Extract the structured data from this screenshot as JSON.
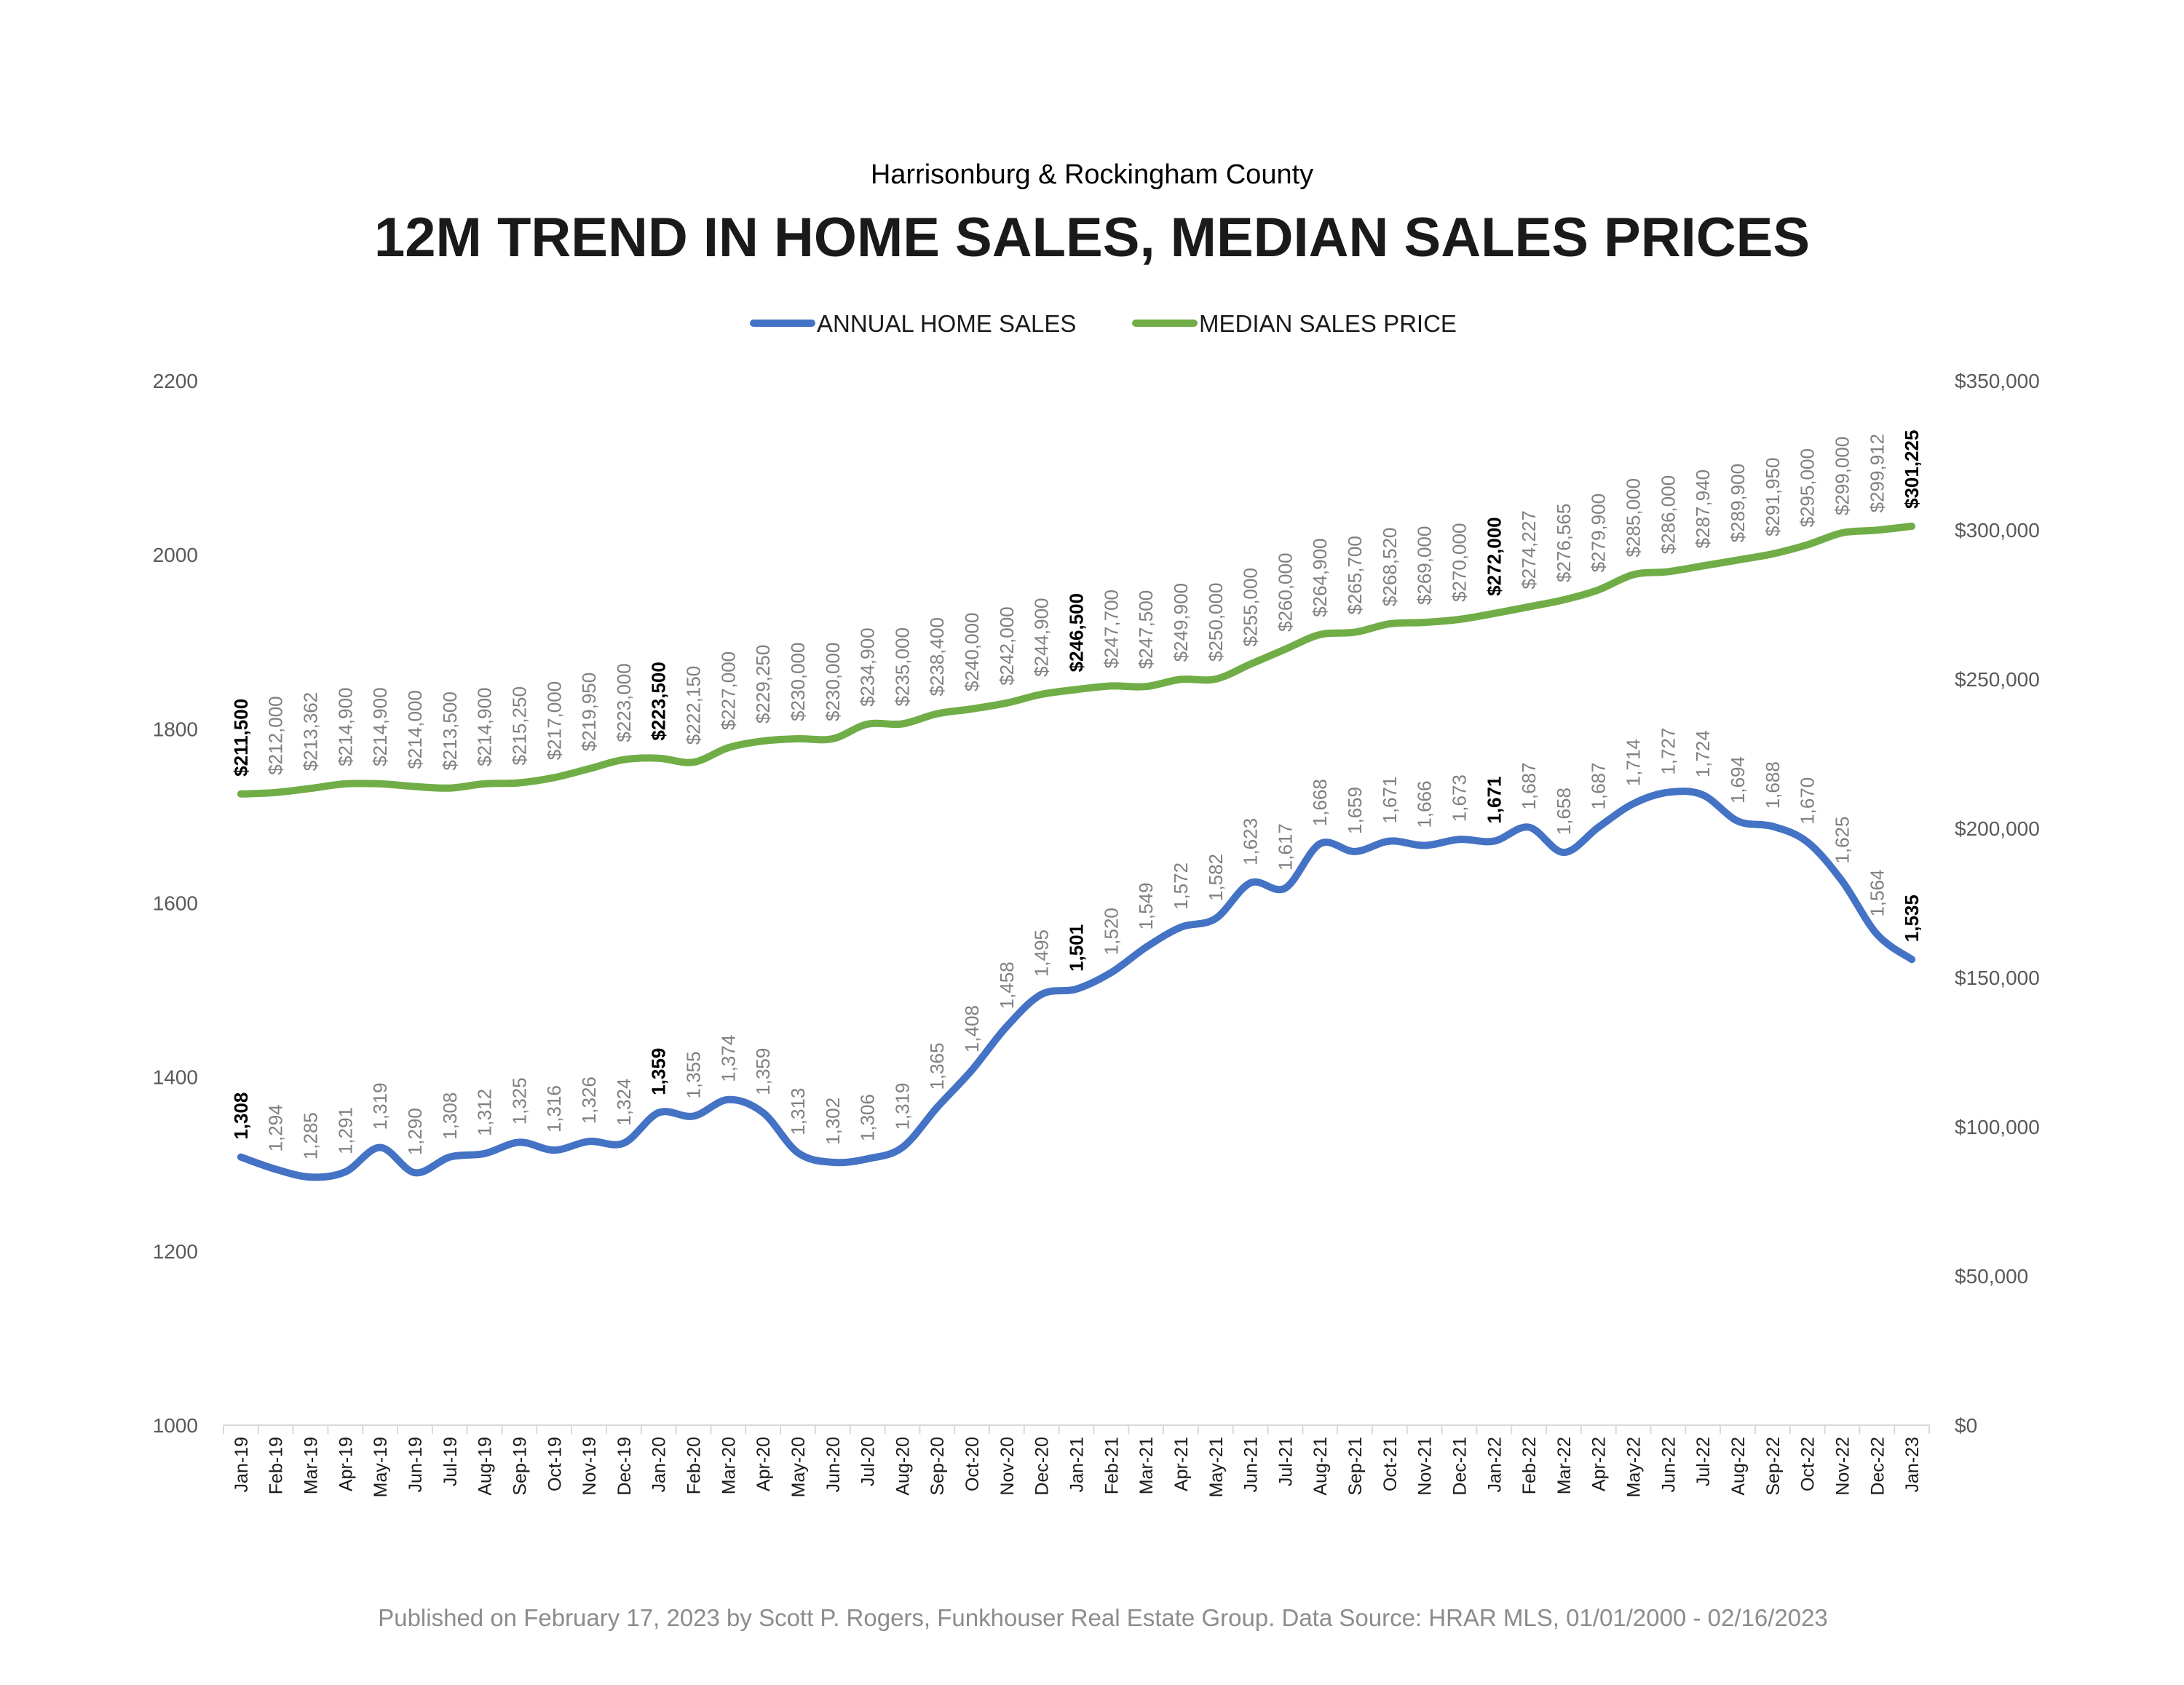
{
  "chart_data": {
    "type": "line",
    "subtitle": "Harrisonburg & Rockingham County",
    "title": "12M TREND IN HOME SALES, MEDIAN SALES PRICES",
    "footer": "Published on February 17, 2023 by Scott P. Rogers, Funkhouser Real Estate Group. Data Source: HRAR MLS, 01/01/2000 - 02/16/2023",
    "legend_position": "top-center",
    "grid": false,
    "categories": [
      "Jan-19",
      "Feb-19",
      "Mar-19",
      "Apr-19",
      "May-19",
      "Jun-19",
      "Jul-19",
      "Aug-19",
      "Sep-19",
      "Oct-19",
      "Nov-19",
      "Dec-19",
      "Jan-20",
      "Feb-20",
      "Mar-20",
      "Apr-20",
      "May-20",
      "Jun-20",
      "Jul-20",
      "Aug-20",
      "Sep-20",
      "Oct-20",
      "Nov-20",
      "Dec-20",
      "Jan-21",
      "Feb-21",
      "Mar-21",
      "Apr-21",
      "May-21",
      "Jun-21",
      "Jul-21",
      "Aug-21",
      "Sep-21",
      "Oct-21",
      "Nov-21",
      "Dec-21",
      "Jan-22",
      "Feb-22",
      "Mar-22",
      "Apr-22",
      "May-22",
      "Jun-22",
      "Jul-22",
      "Aug-22",
      "Sep-22",
      "Oct-22",
      "Nov-22",
      "Dec-22",
      "Jan-23"
    ],
    "y_left": {
      "min": 1000,
      "max": 2200,
      "ticks": [
        "1000",
        "1200",
        "1400",
        "1600",
        "1800",
        "2000",
        "2200"
      ]
    },
    "y_right": {
      "min": 0,
      "max": 350000,
      "ticks": [
        "$0",
        "$50,000",
        "$100,000",
        "$150,000",
        "$200,000",
        "$250,000",
        "$300,000",
        "$350,000"
      ]
    },
    "highlight_indices": [
      0,
      12,
      24,
      36,
      48
    ],
    "series": [
      {
        "name": "ANNUAL HOME SALES",
        "axis": "left",
        "color": "#4472C4",
        "values": [
          1308,
          1294,
          1285,
          1291,
          1319,
          1290,
          1308,
          1312,
          1325,
          1316,
          1326,
          1324,
          1359,
          1355,
          1374,
          1359,
          1313,
          1302,
          1306,
          1319,
          1365,
          1408,
          1458,
          1495,
          1501,
          1520,
          1549,
          1572,
          1582,
          1623,
          1617,
          1668,
          1659,
          1671,
          1666,
          1673,
          1671,
          1687,
          1658,
          1687,
          1714,
          1727,
          1724,
          1694,
          1688,
          1670,
          1625,
          1564,
          1535
        ],
        "labels": [
          "1,308",
          "1,294",
          "1,285",
          "1,291",
          "1,319",
          "1,290",
          "1,308",
          "1,312",
          "1,325",
          "1,316",
          "1,326",
          "1,324",
          "1,359",
          "1,355",
          "1,374",
          "1,359",
          "1,313",
          "1,302",
          "1,306",
          "1,319",
          "1,365",
          "1,408",
          "1,458",
          "1,495",
          "1,501",
          "1,520",
          "1,549",
          "1,572",
          "1,582",
          "1,623",
          "1,617",
          "1,668",
          "1,659",
          "1,671",
          "1,666",
          "1,673",
          "1,671",
          "1,687",
          "1,658",
          "1,687",
          "1,714",
          "1,727",
          "1,724",
          "1,694",
          "1,688",
          "1,670",
          "1,625",
          "1,564",
          "1,535"
        ]
      },
      {
        "name": "MEDIAN SALES PRICE",
        "axis": "right",
        "color": "#70AD47",
        "values": [
          211500,
          212000,
          213362,
          214900,
          214900,
          214000,
          213500,
          214900,
          215250,
          217000,
          219950,
          223000,
          223500,
          222150,
          227000,
          229250,
          230000,
          230000,
          234900,
          235000,
          238400,
          240000,
          242000,
          244900,
          246500,
          247700,
          247500,
          249900,
          250000,
          255000,
          260000,
          264900,
          265700,
          268520,
          269000,
          270000,
          272000,
          274227,
          276565,
          279900,
          285000,
          286000,
          287940,
          289900,
          291950,
          295000,
          299000,
          299912,
          301225
        ],
        "labels": [
          "$211,500",
          "$212,000",
          "$213,362",
          "$214,900",
          "$214,900",
          "$214,000",
          "$213,500",
          "$214,900",
          "$215,250",
          "$217,000",
          "$219,950",
          "$223,000",
          "$223,500",
          "$222,150",
          "$227,000",
          "$229,250",
          "$230,000",
          "$230,000",
          "$234,900",
          "$235,000",
          "$238,400",
          "$240,000",
          "$242,000",
          "$244,900",
          "$246,500",
          "$247,700",
          "$247,500",
          "$249,900",
          "$250,000",
          "$255,000",
          "$260,000",
          "$264,900",
          "$265,700",
          "$268,520",
          "$269,000",
          "$270,000",
          "$272,000",
          "$274,227",
          "$276,565",
          "$279,900",
          "$285,000",
          "$286,000",
          "$287,940",
          "$289,900",
          "$291,950",
          "$295,000",
          "$299,000",
          "$299,912",
          "$301,225"
        ]
      }
    ]
  }
}
